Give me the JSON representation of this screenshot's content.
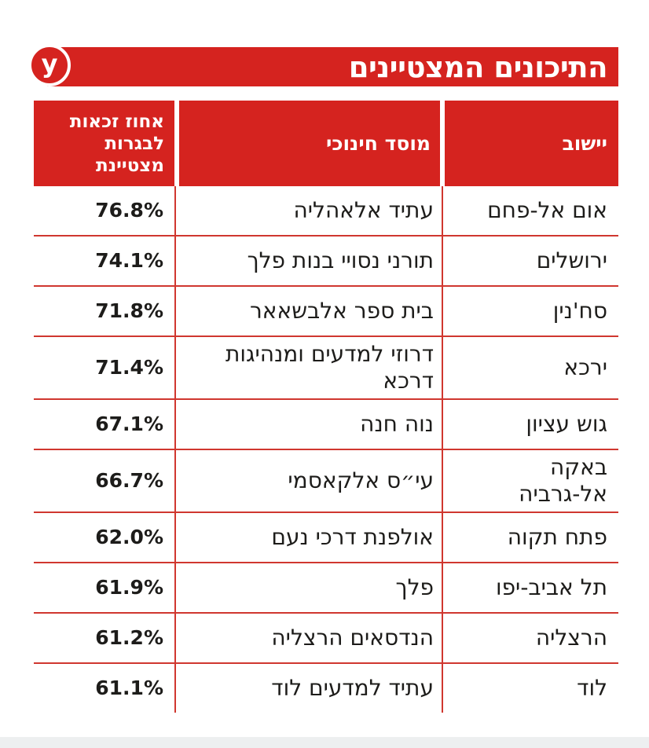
{
  "colors": {
    "brand_red": "#d5231f",
    "line_red": "#d0372f",
    "text": "#1d1c1a",
    "header_text": "#ffffff"
  },
  "logo": {
    "letter": "y"
  },
  "header": {
    "title": "התיכונים המצטיינים"
  },
  "chart_data": {
    "type": "table",
    "title": "התיכונים המצטיינים",
    "direction": "rtl",
    "columns": [
      "יישוב",
      "מוסד חינוכי",
      "אחוז זכאות לבגרות מצטיינת"
    ],
    "rows": [
      {
        "city": "אום אל-פחם",
        "school": "עתיד אלאהליה",
        "percent": 76.8,
        "percent_label": "76.8%"
      },
      {
        "city": "ירושלים",
        "school": "תורני נסויי בנות פלך",
        "percent": 74.1,
        "percent_label": "74.1%"
      },
      {
        "city": "סח'נין",
        "school": "בית ספר אלבשאאר",
        "percent": 71.8,
        "percent_label": "71.8%"
      },
      {
        "city": "ירכא",
        "school": "דרוזי למדעים ומנהיגות דרכא",
        "percent": 71.4,
        "percent_label": "71.4%"
      },
      {
        "city": "גוש עציון",
        "school": "נוה חנה",
        "percent": 67.1,
        "percent_label": "67.1%"
      },
      {
        "city": "באקה אל-גרביה",
        "school": "עי״ס אלקאסמי",
        "percent": 66.7,
        "percent_label": "66.7%"
      },
      {
        "city": "פתח תקוה",
        "school": "אולפנת דרכי נעם",
        "percent": 62.0,
        "percent_label": "62.0%"
      },
      {
        "city": "תל אביב-יפו",
        "school": "פלך",
        "percent": 61.9,
        "percent_label": "61.9%"
      },
      {
        "city": "הרצליה",
        "school": "הנדסאים הרצליה",
        "percent": 61.2,
        "percent_label": "61.2%"
      },
      {
        "city": "לוד",
        "school": "עתיד למדעים לוד",
        "percent": 61.1,
        "percent_label": "61.1%"
      }
    ]
  }
}
